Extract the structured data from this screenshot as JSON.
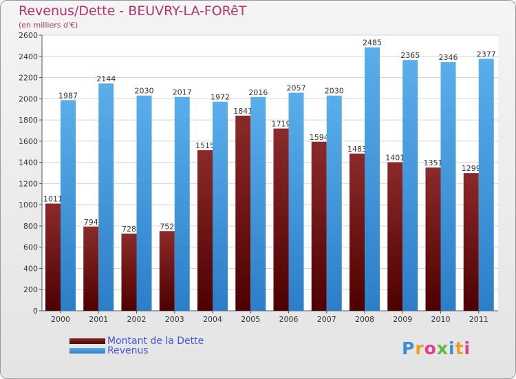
{
  "chart_data": {
    "type": "bar",
    "title": "Revenus/Dette - BEUVRY-LA-FORêT",
    "subtitle": "(en milliers d'€)",
    "categories": [
      "2000",
      "2001",
      "2002",
      "2003",
      "2004",
      "2005",
      "2006",
      "2007",
      "2008",
      "2009",
      "2010",
      "2011"
    ],
    "series": [
      {
        "name": "Montant de la Dette",
        "values": [
          1011,
          794,
          728,
          752,
          1515,
          1841,
          1719,
          1594,
          1483,
          1401,
          1351,
          1299
        ],
        "color": "#7a1a1a"
      },
      {
        "name": "Revenus",
        "values": [
          1987,
          2144,
          2030,
          2017,
          1972,
          2016,
          2057,
          2030,
          2485,
          2365,
          2346,
          2377
        ],
        "color": "#4da3e4"
      }
    ],
    "data_labels": [
      [
        "1011",
        "794",
        "728",
        "752",
        "1515",
        "1841",
        "1719",
        "1594",
        "1483",
        "1401",
        "1351",
        "1299"
      ],
      [
        "1987",
        "2144",
        "2030",
        "2017",
        "1972",
        "2016",
        "2057",
        "2030",
        "2485",
        "2365",
        "2346",
        "2377"
      ]
    ],
    "ylim": [
      0,
      2600
    ],
    "yticks": [
      0,
      200,
      400,
      600,
      800,
      1000,
      1200,
      1400,
      1600,
      1800,
      2000,
      2200,
      2400,
      2600
    ],
    "grid": true,
    "legend_position": "bottom-left"
  },
  "logo": {
    "letters": [
      "P",
      "r",
      "o",
      "x",
      "i",
      "t",
      "i"
    ],
    "colors": [
      "#3e8ed8",
      "#f0a020",
      "#e04090",
      "#5cba3c",
      "#3e8ed8",
      "#f0a020",
      "#e04090"
    ]
  }
}
